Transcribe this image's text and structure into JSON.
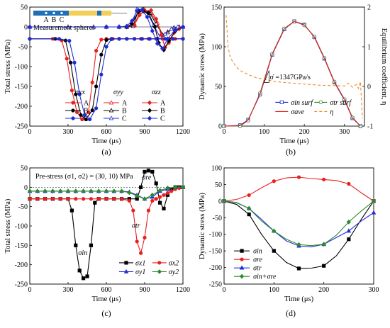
{
  "colors": {
    "black": "#000000",
    "red": "#e8201f",
    "blue": "#1f2bd6",
    "green": "#2e8a2e",
    "orange": "#f08a24",
    "purple": "#8a6bbd",
    "gray": "#8a8a8a",
    "bar_blue": "#1f6fb8",
    "bar_yellow": "#f2cf58"
  },
  "chart_data": [
    {
      "id": "a",
      "type": "line",
      "caption": "(a)",
      "xlabel": "Time (μs)",
      "ylabel": "Total stress (MPa)",
      "xlim": [
        0,
        1200
      ],
      "ylim": [
        -250,
        50
      ],
      "xticks": [
        "0",
        "300",
        "600",
        "900",
        "1200"
      ],
      "yticks": [
        "50",
        "0",
        "-50",
        "-100",
        "-150",
        "-200",
        "-250"
      ],
      "inset_label": "Measurement spheres",
      "inset_points": [
        "A",
        "B",
        "C"
      ],
      "legend_headers": [
        "σxx",
        "σyy",
        "σzz"
      ],
      "legend_rows": [
        "A",
        "B",
        "C"
      ],
      "series": [
        {
          "key": "xxA",
          "color": "red",
          "marker": "dot",
          "x": [
            0,
            180,
            250,
            290,
            330,
            370,
            410,
            460,
            490,
            520,
            560,
            600,
            650,
            700,
            760,
            820,
            870,
            930,
            990,
            1040,
            1090,
            1140,
            1200
          ],
          "y": [
            -30,
            -30,
            -34,
            -80,
            -160,
            -215,
            -233,
            -215,
            -140,
            -60,
            -32,
            -30,
            -30,
            -30,
            -30,
            -30,
            -30,
            -30,
            -30,
            -30,
            -30,
            -30,
            -30
          ]
        },
        {
          "key": "xxB",
          "color": "black",
          "marker": "dot",
          "x": [
            0,
            200,
            280,
            320,
            360,
            400,
            440,
            490,
            520,
            560,
            600,
            640,
            700,
            760,
            820,
            880,
            940,
            1000,
            1060,
            1120,
            1200
          ],
          "y": [
            -30,
            -30,
            -34,
            -90,
            -170,
            -222,
            -233,
            -210,
            -150,
            -70,
            -33,
            -30,
            -30,
            -30,
            -30,
            -30,
            -30,
            -30,
            -30,
            -30,
            -30
          ]
        },
        {
          "key": "xxC",
          "color": "blue",
          "marker": "dot",
          "x": [
            0,
            230,
            310,
            350,
            390,
            430,
            470,
            520,
            560,
            600,
            640,
            700,
            760,
            820,
            880,
            940,
            1000,
            1060,
            1120,
            1200
          ],
          "y": [
            -30,
            -30,
            -35,
            -90,
            -170,
            -222,
            -233,
            -205,
            -120,
            -50,
            -31,
            -30,
            -30,
            -30,
            -30,
            -30,
            -30,
            -30,
            -30,
            -30
          ]
        },
        {
          "key": "yyA",
          "color": "red",
          "marker": "triangle",
          "x": [
            0,
            300,
            500,
            600,
            700,
            760,
            820,
            860,
            900,
            950,
            1000,
            1040,
            1080,
            1130,
            1170,
            1200
          ],
          "y": [
            0,
            0,
            0,
            0,
            0,
            0,
            5,
            38,
            44,
            35,
            10,
            -20,
            -12,
            -2,
            0,
            0
          ]
        },
        {
          "key": "yyB",
          "color": "black",
          "marker": "triangle",
          "x": [
            0,
            300,
            500,
            600,
            700,
            760,
            810,
            850,
            890,
            940,
            990,
            1040,
            1080,
            1130,
            1170,
            1200
          ],
          "y": [
            0,
            0,
            0,
            0,
            0,
            0,
            2,
            42,
            44,
            35,
            8,
            -20,
            -14,
            -2,
            0,
            0
          ]
        },
        {
          "key": "yyC",
          "color": "blue",
          "marker": "triangle",
          "x": [
            0,
            300,
            500,
            600,
            700,
            760,
            800,
            840,
            880,
            930,
            970,
            1020,
            1060,
            1110,
            1160,
            1200
          ],
          "y": [
            0,
            0,
            0,
            0,
            0,
            0,
            5,
            45,
            44,
            30,
            5,
            -25,
            -18,
            -5,
            0,
            0
          ]
        },
        {
          "key": "zzA",
          "color": "red",
          "marker": "diamond",
          "x": [
            0,
            600,
            700,
            760,
            820,
            860,
            900,
            950,
            990,
            1030,
            1060,
            1090,
            1130,
            1170,
            1200
          ],
          "y": [
            0,
            0,
            0,
            0,
            5,
            30,
            40,
            42,
            20,
            -20,
            -52,
            -40,
            -15,
            -5,
            0
          ]
        },
        {
          "key": "zzB",
          "color": "black",
          "marker": "diamond",
          "x": [
            0,
            600,
            700,
            760,
            800,
            850,
            890,
            930,
            980,
            1010,
            1050,
            1090,
            1140,
            1200
          ],
          "y": [
            0,
            0,
            0,
            0,
            8,
            38,
            40,
            35,
            0,
            -40,
            -58,
            -35,
            -10,
            0
          ]
        },
        {
          "key": "zzC",
          "color": "blue",
          "marker": "diamond",
          "x": [
            0,
            600,
            700,
            760,
            800,
            840,
            880,
            920,
            960,
            1000,
            1040,
            1080,
            1140,
            1200
          ],
          "y": [
            0,
            0,
            0,
            2,
            15,
            40,
            42,
            25,
            -10,
            -42,
            -55,
            -30,
            -8,
            0
          ]
        }
      ]
    },
    {
      "id": "b",
      "type": "line",
      "caption": "(b)",
      "xlabel": "Time (μs)",
      "ylabel": "Dynamic stress (MPa)",
      "ylabel_right": "Equilibrium coefficient, η",
      "xlim": [
        0,
        350
      ],
      "ylim": [
        0,
        150
      ],
      "ylim_right": [
        -1,
        2
      ],
      "xticks": [
        "0",
        "100",
        "200",
        "300"
      ],
      "yticks": [
        "0",
        "50",
        "100",
        "150"
      ],
      "yticks_right": [
        "-1",
        "0",
        "1",
        "2"
      ],
      "annotation": "σ̇ =1347GPa/s",
      "legend": [
        "σin",
        "surf",
        "σtr",
        "surf",
        "σave",
        "η"
      ],
      "series": [
        {
          "key": "in",
          "color": "blue",
          "marker": "square",
          "x": [
            0,
            40,
            60,
            90,
            120,
            150,
            175,
            200,
            225,
            250,
            275,
            300,
            320,
            340
          ],
          "y": [
            0,
            1,
            8,
            40,
            90,
            122,
            132,
            128,
            112,
            85,
            55,
            33,
            10,
            0
          ]
        },
        {
          "key": "tr",
          "color": "green",
          "marker": "circle",
          "x": [
            0,
            40,
            60,
            90,
            120,
            150,
            175,
            200,
            225,
            250,
            275,
            300,
            320,
            340
          ],
          "y": [
            0,
            0,
            7,
            42,
            91,
            123,
            132,
            127,
            113,
            86,
            56,
            34,
            11,
            0
          ]
        },
        {
          "key": "ave",
          "color": "red",
          "marker": "none",
          "x": [
            0,
            40,
            60,
            90,
            120,
            150,
            175,
            200,
            225,
            250,
            275,
            300,
            320,
            340
          ],
          "y": [
            0,
            0.5,
            7.5,
            41,
            90.5,
            122.5,
            132,
            127.5,
            112.5,
            85.5,
            55.5,
            33.5,
            10.5,
            0
          ]
        },
        {
          "key": "eta",
          "color": "orange",
          "marker": "none",
          "axis": "right",
          "x": [
            5,
            10,
            15,
            20,
            30,
            40,
            60,
            80,
            100,
            130,
            160,
            200,
            240,
            280,
            300,
            310,
            320,
            330,
            335,
            340,
            345
          ],
          "y": [
            1.8,
            1.0,
            0.75,
            0.65,
            0.5,
            0.4,
            0.3,
            0.22,
            0.18,
            0.12,
            0.09,
            0.06,
            0.03,
            0.02,
            0.01,
            0.08,
            -0.02,
            0.05,
            -0.05,
            0.12,
            -0.8
          ]
        }
      ]
    },
    {
      "id": "c",
      "type": "line",
      "caption": "(c)",
      "xlabel": "Time (μs)",
      "ylabel": "Total stress (MPa)",
      "xlim": [
        0,
        1200
      ],
      "ylim": [
        -250,
        50
      ],
      "xticks": [
        "0",
        "300",
        "600",
        "900",
        "1200"
      ],
      "yticks": [
        "50",
        "0",
        "-50",
        "-100",
        "-150",
        "-200",
        "-250"
      ],
      "annotation": "Pre-stress  (σ1, σ2) = (30, 10) MPa",
      "curve_labels": [
        "σin",
        "σtr",
        "σre"
      ],
      "legend": [
        "σx1",
        "σx2",
        "σy1",
        "σy2"
      ],
      "series": [
        {
          "key": "x1",
          "color": "black",
          "marker": "square",
          "x": [
            0,
            60,
            120,
            180,
            240,
            300,
            330,
            360,
            390,
            420,
            450,
            480,
            510,
            540,
            600,
            660,
            720,
            780,
            840,
            870,
            900,
            930,
            960,
            990,
            1020,
            1050,
            1080,
            1110,
            1140,
            1170,
            1200
          ],
          "y": [
            -30,
            -30,
            -30,
            -30,
            -30,
            -30,
            -60,
            -150,
            -215,
            -235,
            -230,
            -150,
            -40,
            -30,
            -30,
            -30,
            -30,
            -30,
            -30,
            0,
            40,
            43,
            40,
            10,
            -40,
            -55,
            -20,
            -5,
            0,
            0,
            0
          ]
        },
        {
          "key": "x2",
          "color": "red",
          "marker": "circle",
          "x": [
            0,
            60,
            120,
            180,
            240,
            300,
            360,
            420,
            480,
            540,
            600,
            660,
            720,
            780,
            810,
            840,
            870,
            900,
            930,
            960,
            990,
            1020,
            1050,
            1080,
            1110,
            1140,
            1170,
            1200
          ],
          "y": [
            -30,
            -30,
            -30,
            -30,
            -30,
            -30,
            -30,
            -30,
            -30,
            -30,
            -30,
            -30,
            -30,
            -35,
            -60,
            -140,
            -170,
            -130,
            -60,
            -35,
            -30,
            -25,
            -20,
            -15,
            -10,
            -5,
            -2,
            0
          ]
        },
        {
          "key": "y1",
          "color": "blue",
          "marker": "triangle",
          "x": [
            0,
            60,
            120,
            180,
            240,
            300,
            360,
            420,
            480,
            540,
            600,
            660,
            720,
            780,
            840,
            900,
            960,
            1020,
            1080,
            1140,
            1200
          ],
          "y": [
            -10,
            -10,
            -10,
            -10,
            -10,
            -10,
            -10,
            -10,
            -10,
            -10,
            -10,
            -10,
            -10,
            -12,
            -20,
            -30,
            -25,
            -10,
            -5,
            0,
            0
          ]
        },
        {
          "key": "y2",
          "color": "green",
          "marker": "diamond",
          "x": [
            0,
            60,
            120,
            180,
            240,
            300,
            360,
            420,
            480,
            540,
            600,
            660,
            720,
            780,
            840,
            900,
            960,
            1020,
            1080,
            1140,
            1200
          ],
          "y": [
            -10,
            -10,
            -10,
            -10,
            -10,
            -10,
            -10,
            -10,
            -10,
            -10,
            -10,
            -10,
            -10,
            -14,
            -22,
            -30,
            -20,
            -8,
            -2,
            0,
            0
          ]
        }
      ]
    },
    {
      "id": "d",
      "type": "line",
      "caption": "(d)",
      "xlabel": "Time (μs)",
      "ylabel": "Dynamic stress (MPa)",
      "xlim": [
        0,
        300
      ],
      "ylim": [
        -250,
        100
      ],
      "xticks": [
        "0",
        "100",
        "200",
        "300"
      ],
      "yticks": [
        "100",
        "50",
        "0",
        "-50",
        "-100",
        "-150",
        "-200",
        "-250"
      ],
      "legend": [
        "σin",
        "σre",
        "σtr",
        "σin+σre"
      ],
      "series": [
        {
          "key": "in",
          "color": "black",
          "marker": "square",
          "x": [
            0,
            25,
            50,
            75,
            100,
            125,
            150,
            175,
            200,
            225,
            250,
            275,
            300
          ],
          "y": [
            0,
            -10,
            -40,
            -100,
            -150,
            -185,
            -203,
            -202,
            -195,
            -165,
            -115,
            -55,
            0
          ]
        },
        {
          "key": "re",
          "color": "red",
          "marker": "circle",
          "x": [
            0,
            25,
            50,
            75,
            100,
            125,
            150,
            175,
            200,
            225,
            250,
            275,
            300
          ],
          "y": [
            0,
            5,
            18,
            40,
            60,
            70,
            72,
            68,
            65,
            62,
            52,
            25,
            0
          ]
        },
        {
          "key": "tr",
          "color": "blue",
          "marker": "triangle",
          "x": [
            0,
            25,
            50,
            75,
            100,
            125,
            150,
            175,
            200,
            225,
            250,
            275,
            300
          ],
          "y": [
            0,
            -4,
            -22,
            -55,
            -90,
            -120,
            -135,
            -138,
            -130,
            -110,
            -90,
            -60,
            -35
          ]
        },
        {
          "key": "sum",
          "color": "green",
          "marker": "diamond",
          "x": [
            0,
            25,
            50,
            75,
            100,
            125,
            150,
            175,
            200,
            225,
            250,
            275,
            300
          ],
          "y": [
            0,
            -5,
            -22,
            -60,
            -90,
            -115,
            -131,
            -134,
            -130,
            -103,
            -63,
            -30,
            0
          ]
        }
      ]
    }
  ]
}
